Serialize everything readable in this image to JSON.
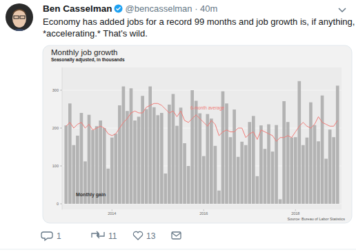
{
  "tweet": {
    "name": "Ben Casselman",
    "meta": "@bencasselman · 40m",
    "text_lines": [
      "Economy has added jobs for a record 99 months and job growth is, if anything,",
      "*accelerating.* That's wild."
    ],
    "replies": 1,
    "retweets": 11,
    "likes": 13
  },
  "chart_data": {
    "type": "bar",
    "title": "Monthly job growth",
    "subtitle": "Seasonally adjusted, in thousands",
    "source": "Source: Bureau of Labor Statistics",
    "categories": [
      null,
      null,
      null,
      null,
      null,
      null,
      null,
      null,
      null,
      null,
      null,
      null,
      "2014",
      null,
      null,
      null,
      null,
      null,
      null,
      null,
      null,
      null,
      null,
      null,
      null,
      null,
      null,
      null,
      null,
      null,
      null,
      null,
      null,
      null,
      null,
      null,
      "2016",
      null,
      null,
      null,
      null,
      null,
      null,
      null,
      null,
      null,
      null,
      null,
      null,
      null,
      null,
      null,
      null,
      null,
      null,
      null,
      null,
      null,
      null,
      null,
      "2018",
      null,
      null,
      null,
      null,
      null,
      null,
      null,
      null,
      null,
      null,
      null
    ],
    "series": [
      {
        "name": "Monthly gain",
        "type": "bar",
        "color": "#b3b3b3",
        "values": [
          207,
          265,
          155,
          180,
          240,
          112,
          235,
          195,
          205,
          220,
          200,
          93,
          175,
          185,
          260,
          310,
          245,
          305,
          220,
          230,
          285,
          250,
          310,
          255,
          234,
          240,
          80,
          262,
          290,
          206,
          254,
          160,
          100,
          300,
          272,
          239,
          126,
          237,
          225,
          153,
          35,
          297,
          265,
          176,
          249,
          124,
          164,
          155,
          216,
          232,
          73,
          207,
          145,
          210,
          138,
          208,
          12,
          271,
          216,
          175,
          176,
          324,
          155,
          175,
          268,
          208,
          165,
          286,
          119,
          196,
          176,
          312
        ]
      },
      {
        "name": "6-month average",
        "type": "line",
        "color": "#f07c78",
        "values": [
          205,
          215,
          200,
          210,
          215,
          200,
          210,
          195,
          200,
          205,
          200,
          185,
          180,
          185,
          200,
          215,
          225,
          240,
          245,
          240,
          240,
          255,
          260,
          265,
          265,
          260,
          250,
          240,
          245,
          230,
          245,
          220,
          215,
          225,
          235,
          225,
          215,
          205,
          220,
          210,
          180,
          190,
          195,
          190,
          190,
          200,
          200,
          175,
          185,
          190,
          170,
          195,
          190,
          185,
          180,
          165,
          175,
          175,
          180,
          175,
          190,
          205,
          215,
          205,
          200,
          210,
          230,
          215,
          210,
          205,
          205,
          220
        ]
      }
    ],
    "ylim": [
      -15,
      360
    ],
    "yticks": [
      0,
      100,
      200,
      300
    ],
    "grid": true
  }
}
